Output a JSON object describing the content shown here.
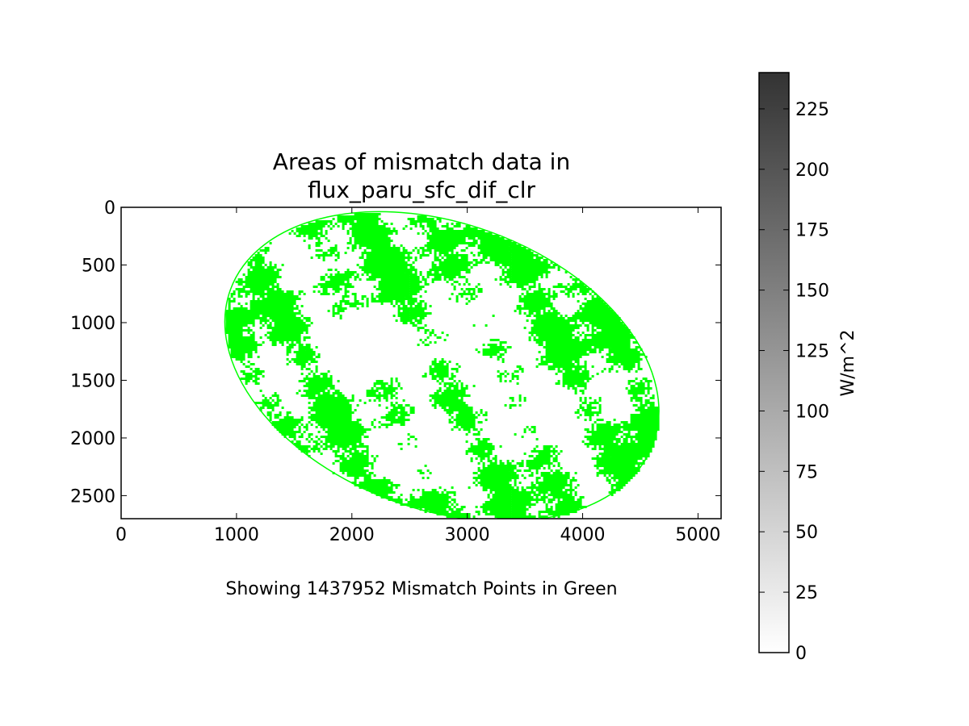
{
  "chart_data": {
    "type": "heatmap",
    "title_line1": "Areas of mismatch data in",
    "title_line2": "flux_paru_sfc_dif_clr",
    "caption": "Showing 1437952 Mismatch Points in Green",
    "xlim": [
      0,
      5200
    ],
    "ylim": [
      2700,
      0
    ],
    "x_ticks": [
      0,
      1000,
      2000,
      3000,
      4000,
      5000
    ],
    "y_ticks": [
      0,
      500,
      1000,
      1500,
      2000,
      2500
    ],
    "mismatch_color": "#00ff00",
    "mismatch_count": 1437952,
    "disk": {
      "center_x": 2780,
      "center_y": 1380,
      "radius_x": 1950,
      "radius_y": 1240,
      "rotation_deg": 20
    },
    "colorbar": {
      "label": "W/m^2",
      "min": 0,
      "max": 240,
      "ticks": [
        0,
        25,
        50,
        75,
        100,
        125,
        150,
        175,
        200,
        225
      ],
      "color_low": "#ffffff",
      "color_high": "#333333"
    }
  }
}
